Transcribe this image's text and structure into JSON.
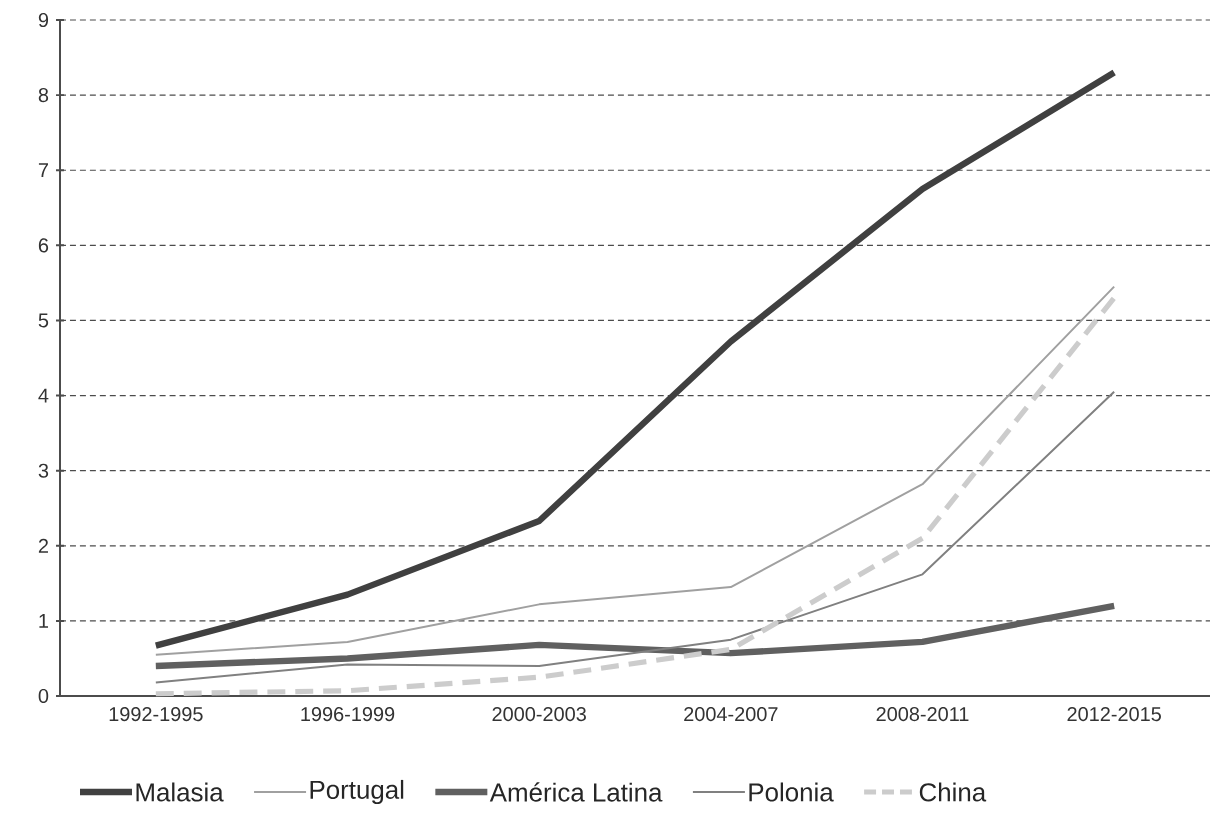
{
  "chart_data": {
    "type": "line",
    "categories": [
      "1992-1995",
      "1996-1999",
      "2000-2003",
      "2004-2007",
      "2008-2011",
      "2012-2015"
    ],
    "series": [
      {
        "name": "Malasia",
        "color": "#404040",
        "values": [
          0.67,
          1.35,
          2.33,
          4.72,
          6.75,
          8.3
        ]
      },
      {
        "name": "Portugal",
        "color": "#a0a0a0",
        "values": [
          0.55,
          0.72,
          1.22,
          1.45,
          2.82,
          5.45
        ]
      },
      {
        "name": "América Latina",
        "color": "#606060",
        "values": [
          0.4,
          0.5,
          0.68,
          0.57,
          0.72,
          1.2
        ]
      },
      {
        "name": "Polonia",
        "color": "#808080",
        "values": [
          0.18,
          0.42,
          0.4,
          0.75,
          1.62,
          4.05
        ]
      },
      {
        "name": "China",
        "color": "#cccccc",
        "values": [
          0.03,
          0.07,
          0.25,
          0.62,
          2.1,
          5.3
        ],
        "line_style": "dashed"
      }
    ],
    "ylim": [
      0,
      9
    ],
    "yticks": [
      0,
      1,
      2,
      3,
      4,
      5,
      6,
      7,
      8,
      9
    ],
    "grid": "y",
    "legend": "bottom",
    "marker": "none",
    "line_style": "solid"
  }
}
